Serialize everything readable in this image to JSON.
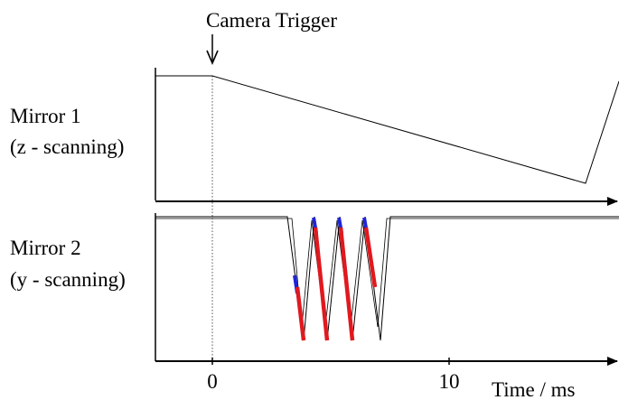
{
  "annotation": {
    "camera_trigger": "Camera Trigger"
  },
  "channels": [
    {
      "name": "Mirror 1",
      "description": "(z - scanning)"
    },
    {
      "name": "Mirror 2",
      "description": "(y - scanning)"
    }
  ],
  "axis": {
    "xlabel": "Time / ms",
    "ticks": [
      "0",
      "10"
    ]
  },
  "colors": {
    "line": "#000000",
    "segment_red": "#e0191f",
    "segment_blue": "#1f24d6",
    "marker": "#555555"
  }
}
